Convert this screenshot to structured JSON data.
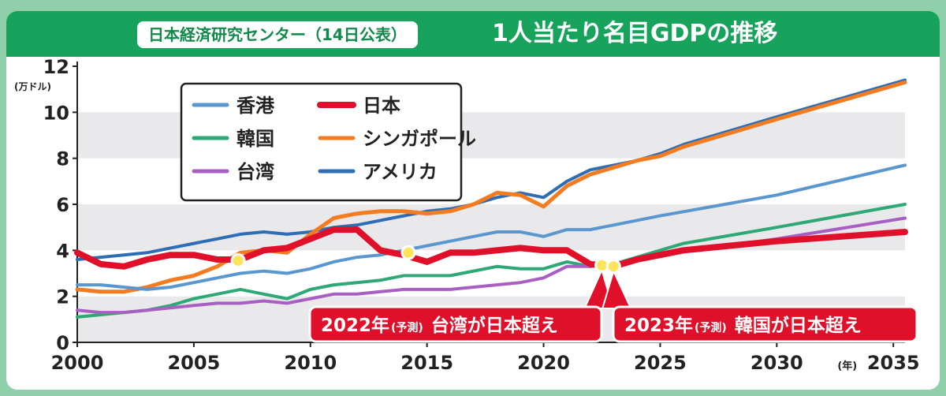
{
  "header": {
    "source": "日本経済研究センター（14日公表）",
    "title": "1人当たり名目GDPの推移"
  },
  "chart_data": {
    "type": "line",
    "title": "1人当たり名目GDPの推移",
    "source": "日本経済研究センター（14日公表）",
    "ylabel": "(万ドル)",
    "xlabel": "(年)",
    "xlim": [
      2000,
      2036
    ],
    "ylim": [
      0,
      12
    ],
    "grid": "alternating horizontal bands",
    "xticks": [
      2000,
      2005,
      2010,
      2015,
      2020,
      2025,
      2030,
      2035
    ],
    "yticks": [
      0,
      2,
      4,
      6,
      8,
      10,
      12
    ],
    "legend_position": "top-left",
    "series": [
      {
        "name": "アメリカ",
        "color": "#2f6db5",
        "width": 4,
        "x": [
          2000,
          2001,
          2002,
          2003,
          2004,
          2005,
          2006,
          2007,
          2008,
          2009,
          2010,
          2011,
          2012,
          2013,
          2014,
          2015,
          2016,
          2017,
          2018,
          2019,
          2020,
          2021,
          2022,
          2023,
          2024,
          2025,
          2026,
          2030,
          2035.5
        ],
        "y": [
          3.6,
          3.7,
          3.8,
          3.9,
          4.1,
          4.3,
          4.5,
          4.7,
          4.8,
          4.7,
          4.8,
          5.0,
          5.1,
          5.3,
          5.5,
          5.7,
          5.8,
          6.0,
          6.3,
          6.5,
          6.3,
          7.0,
          7.5,
          7.7,
          7.9,
          8.2,
          8.6,
          9.8,
          11.4
        ]
      },
      {
        "name": "シンガポール",
        "color": "#f47c20",
        "width": 5,
        "x": [
          2000,
          2001,
          2002,
          2003,
          2004,
          2005,
          2006,
          2007,
          2008,
          2009,
          2010,
          2011,
          2012,
          2013,
          2014,
          2015,
          2016,
          2017,
          2018,
          2019,
          2020,
          2021,
          2022,
          2023,
          2024,
          2025,
          2026,
          2030,
          2035.5
        ],
        "y": [
          2.3,
          2.2,
          2.2,
          2.4,
          2.7,
          2.9,
          3.3,
          3.9,
          4.0,
          3.9,
          4.7,
          5.4,
          5.6,
          5.7,
          5.7,
          5.6,
          5.7,
          6.0,
          6.5,
          6.4,
          5.9,
          6.8,
          7.3,
          7.6,
          7.9,
          8.1,
          8.5,
          9.7,
          11.3
        ]
      },
      {
        "name": "香港",
        "color": "#5b97cf",
        "width": 4,
        "x": [
          2000,
          2001,
          2002,
          2003,
          2004,
          2005,
          2006,
          2007,
          2008,
          2009,
          2010,
          2011,
          2012,
          2013,
          2014,
          2015,
          2016,
          2017,
          2018,
          2019,
          2020,
          2021,
          2022,
          2023,
          2024,
          2025,
          2030,
          2035.5
        ],
        "y": [
          2.5,
          2.5,
          2.4,
          2.3,
          2.4,
          2.6,
          2.8,
          3.0,
          3.1,
          3.0,
          3.2,
          3.5,
          3.7,
          3.8,
          4.0,
          4.2,
          4.4,
          4.6,
          4.8,
          4.8,
          4.6,
          4.9,
          4.9,
          5.1,
          5.3,
          5.5,
          6.4,
          7.7
        ]
      },
      {
        "name": "韓国",
        "color": "#2ea874",
        "width": 4,
        "x": [
          2000,
          2001,
          2002,
          2003,
          2004,
          2005,
          2006,
          2007,
          2008,
          2009,
          2010,
          2011,
          2012,
          2013,
          2014,
          2015,
          2016,
          2017,
          2018,
          2019,
          2020,
          2021,
          2022,
          2023,
          2024,
          2025,
          2026,
          2030,
          2035.5
        ],
        "y": [
          1.1,
          1.2,
          1.3,
          1.4,
          1.6,
          1.9,
          2.1,
          2.3,
          2.1,
          1.9,
          2.3,
          2.5,
          2.6,
          2.7,
          2.9,
          2.9,
          2.9,
          3.1,
          3.3,
          3.2,
          3.2,
          3.5,
          3.3,
          3.4,
          3.7,
          4.0,
          4.3,
          5.0,
          6.0
        ]
      },
      {
        "name": "台湾",
        "color": "#a85fc2",
        "width": 4,
        "x": [
          2000,
          2001,
          2002,
          2003,
          2004,
          2005,
          2006,
          2007,
          2008,
          2009,
          2010,
          2011,
          2012,
          2013,
          2014,
          2015,
          2016,
          2017,
          2018,
          2019,
          2020,
          2021,
          2022,
          2023,
          2024,
          2025,
          2030,
          2035.5
        ],
        "y": [
          1.4,
          1.3,
          1.3,
          1.4,
          1.5,
          1.6,
          1.7,
          1.7,
          1.8,
          1.7,
          1.9,
          2.1,
          2.1,
          2.2,
          2.3,
          2.3,
          2.3,
          2.4,
          2.5,
          2.6,
          2.8,
          3.3,
          3.3,
          3.4,
          3.6,
          3.8,
          4.5,
          5.4
        ]
      },
      {
        "name": "日本",
        "color": "#e0102a",
        "width": 8,
        "x": [
          2000,
          2001,
          2002,
          2003,
          2004,
          2005,
          2006,
          2007,
          2008,
          2009,
          2010,
          2011,
          2012,
          2013,
          2014,
          2015,
          2016,
          2017,
          2018,
          2019,
          2020,
          2021,
          2022,
          2023,
          2024,
          2025,
          2026,
          2030,
          2035.5
        ],
        "y": [
          3.9,
          3.4,
          3.3,
          3.6,
          3.8,
          3.8,
          3.6,
          3.6,
          4.0,
          4.1,
          4.5,
          4.9,
          4.9,
          4.0,
          3.8,
          3.5,
          3.9,
          3.9,
          4.0,
          4.1,
          4.0,
          4.0,
          3.4,
          3.3,
          3.6,
          3.8,
          4.0,
          4.4,
          4.8
        ]
      }
    ],
    "legend": [
      {
        "name": "香港",
        "color": "#5b97cf"
      },
      {
        "name": "日本",
        "color": "#e0102a"
      },
      {
        "name": "韓国",
        "color": "#2ea874"
      },
      {
        "name": "シンガポール",
        "color": "#f47c20"
      },
      {
        "name": "台湾",
        "color": "#a85fc2"
      },
      {
        "name": "アメリカ",
        "color": "#2f6db5"
      }
    ],
    "markers": [
      {
        "x": 2006.9,
        "y": 3.55
      },
      {
        "x": 2014.2,
        "y": 3.9
      },
      {
        "x": 2022.5,
        "y": 3.35
      },
      {
        "x": 2023.0,
        "y": 3.3
      }
    ],
    "annotations": [
      {
        "year": "2022年",
        "note": "(予測)",
        "text": "台湾が日本超え",
        "target_x": 2022.5,
        "target_y": 3.35
      },
      {
        "year": "2023年",
        "note": "(予測)",
        "text": "韓国が日本超え",
        "target_x": 2023.0,
        "target_y": 3.3
      }
    ]
  }
}
